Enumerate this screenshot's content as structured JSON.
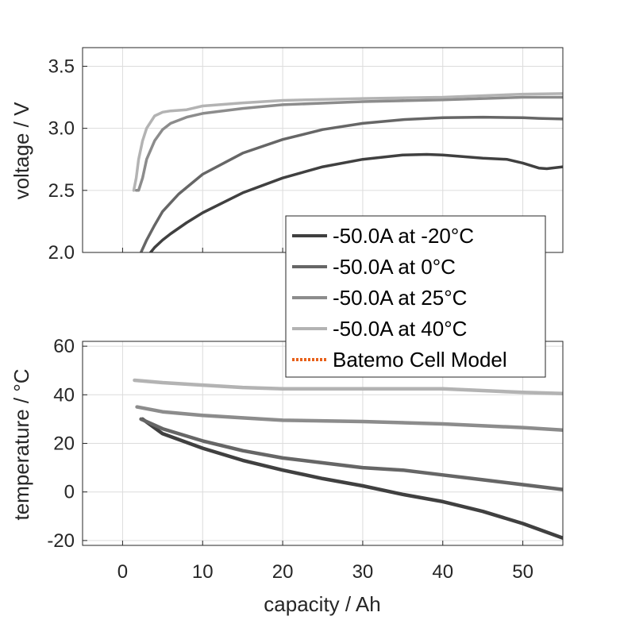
{
  "chart_data": [
    {
      "type": "line",
      "ylabel": "voltage / V",
      "xlim": [
        -5,
        55
      ],
      "ylim": [
        2.0,
        3.65
      ],
      "yticks": [
        "2.0",
        "2.5",
        "3.0",
        "3.5"
      ],
      "grid": true,
      "legend": {
        "placement": "lower-right",
        "entries": [
          {
            "label": "-50.0A at -20°C",
            "color": "#404040",
            "style": "solid"
          },
          {
            "label": "-50.0A at 0°C",
            "color": "#666666",
            "style": "solid"
          },
          {
            "label": "-50.0A at 25°C",
            "color": "#8c8c8c",
            "style": "solid"
          },
          {
            "label": "-50.0A at 40°C",
            "color": "#b3b3b3",
            "style": "solid"
          },
          {
            "label": "Batemo Cell Model",
            "color": "#e8611a",
            "style": "dotted"
          }
        ]
      },
      "series": [
        {
          "name": "-50.0A at -20°C",
          "color": "#404040",
          "x": [
            3.5,
            4,
            5,
            6,
            8,
            10,
            15,
            20,
            25,
            30,
            35,
            38,
            40,
            45,
            48,
            50,
            52,
            53,
            55
          ],
          "y": [
            2.0,
            2.04,
            2.1,
            2.15,
            2.24,
            2.32,
            2.48,
            2.6,
            2.69,
            2.75,
            2.785,
            2.79,
            2.785,
            2.76,
            2.75,
            2.72,
            2.68,
            2.675,
            2.69
          ]
        },
        {
          "name": "-50.0A at 0°C",
          "color": "#666666",
          "x": [
            2.3,
            3,
            4,
            5,
            7,
            10,
            15,
            20,
            25,
            30,
            35,
            40,
            45,
            50,
            52,
            55
          ],
          "y": [
            2.0,
            2.1,
            2.22,
            2.33,
            2.47,
            2.63,
            2.8,
            2.91,
            2.99,
            3.04,
            3.07,
            3.085,
            3.09,
            3.085,
            3.08,
            3.075
          ]
        },
        {
          "name": "-50.0A at 25°C",
          "color": "#8c8c8c",
          "x": [
            1.7,
            2,
            2.5,
            3,
            4,
            5,
            6,
            8,
            10,
            15,
            20,
            30,
            40,
            50,
            55
          ],
          "y": [
            2.5,
            2.5,
            2.6,
            2.75,
            2.9,
            2.99,
            3.04,
            3.09,
            3.12,
            3.16,
            3.19,
            3.215,
            3.23,
            3.25,
            3.25
          ]
        },
        {
          "name": "-50.0A at 40°C",
          "color": "#b3b3b3",
          "x": [
            1.4,
            1.7,
            2,
            2.5,
            3,
            4,
            5,
            6,
            8,
            10,
            15,
            20,
            30,
            40,
            50,
            55
          ],
          "y": [
            2.5,
            2.6,
            2.75,
            2.9,
            3.0,
            3.1,
            3.13,
            3.14,
            3.15,
            3.18,
            3.205,
            3.225,
            3.24,
            3.25,
            3.275,
            3.28
          ]
        }
      ]
    },
    {
      "type": "line",
      "xlabel": "capacity / Ah",
      "ylabel": "temperature / °C",
      "xlim": [
        -5,
        55
      ],
      "ylim": [
        -22,
        62
      ],
      "xticks": [
        "0",
        "10",
        "20",
        "30",
        "40",
        "50"
      ],
      "yticks": [
        "-20",
        "0",
        "20",
        "40",
        "60"
      ],
      "grid": true,
      "series": [
        {
          "name": "-50.0A at -20°C",
          "color": "#404040",
          "x": [
            2.5,
            5,
            10,
            15,
            20,
            25,
            30,
            35,
            40,
            45,
            50,
            55
          ],
          "y": [
            30,
            24,
            18,
            13,
            9,
            5.5,
            2.5,
            -1,
            -4,
            -8,
            -13,
            -19
          ]
        },
        {
          "name": "-50.0A at 0°C",
          "color": "#666666",
          "x": [
            2.3,
            5,
            10,
            15,
            20,
            25,
            30,
            35,
            40,
            45,
            50,
            55
          ],
          "y": [
            30,
            26,
            21,
            17,
            14,
            12,
            10,
            9,
            7,
            5,
            3,
            1
          ]
        },
        {
          "name": "-50.0A at 25°C",
          "color": "#8c8c8c",
          "x": [
            1.8,
            5,
            10,
            15,
            20,
            30,
            40,
            50,
            55
          ],
          "y": [
            35,
            33,
            31.5,
            30.5,
            29.5,
            29,
            28,
            26.5,
            25.5
          ]
        },
        {
          "name": "-50.0A at 40°C",
          "color": "#b3b3b3",
          "x": [
            1.5,
            5,
            10,
            15,
            20,
            30,
            40,
            50,
            55
          ],
          "y": [
            46,
            45,
            44,
            43,
            42.5,
            42.5,
            42.5,
            41,
            40.5
          ]
        }
      ]
    }
  ]
}
